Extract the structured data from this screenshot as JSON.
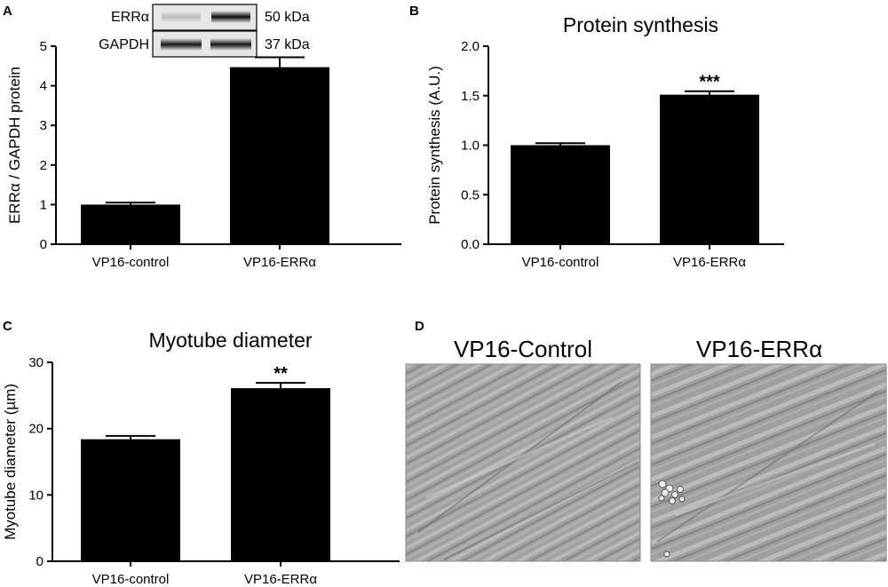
{
  "panels": {
    "a": {
      "letter": "A"
    },
    "b": {
      "letter": "B"
    },
    "c": {
      "letter": "C"
    },
    "d": {
      "letter": "D",
      "images": [
        {
          "title": "VP16-Control"
        },
        {
          "title": "VP16-ERRα"
        }
      ]
    }
  },
  "blot": {
    "rows": [
      {
        "protein": "ERRα",
        "size": "50 kDa",
        "lane_intensity": [
          0.18,
          0.95
        ]
      },
      {
        "protein": "GAPDH",
        "size": "37 kDa",
        "lane_intensity": [
          0.92,
          0.92
        ]
      }
    ]
  },
  "chart_data": [
    {
      "id": "A",
      "type": "bar",
      "title": "",
      "xlabel": "",
      "ylabel": "ERRα / GAPDH protein",
      "ylim": [
        0,
        5
      ],
      "yticks": [
        0,
        1,
        2,
        3,
        4,
        5
      ],
      "categories": [
        "VP16-control",
        "VP16-ERRα"
      ],
      "values": [
        1.0,
        4.47
      ],
      "errors": [
        0.05,
        0.25
      ],
      "significance": [
        "",
        ""
      ],
      "bar_color": "#000000",
      "grid": false
    },
    {
      "id": "B",
      "type": "bar",
      "title": "Protein synthesis",
      "xlabel": "",
      "ylabel": "Protein synthesis (A.U.)",
      "ylim": [
        0,
        2.0
      ],
      "yticks": [
        0.0,
        0.5,
        1.0,
        1.5,
        2.0
      ],
      "ytick_labels": [
        "0.0",
        "0.5",
        "1.0",
        "1.5",
        "2.0"
      ],
      "categories": [
        "VP16-control",
        "VP16-ERRα"
      ],
      "values": [
        1.0,
        1.51
      ],
      "errors": [
        0.02,
        0.035
      ],
      "significance": [
        "",
        "***"
      ],
      "bar_color": "#000000",
      "grid": false
    },
    {
      "id": "C",
      "type": "bar",
      "title": "Myotube diameter",
      "xlabel": "",
      "ylabel": "Myotube diameter (µm)",
      "ylim": [
        0,
        30
      ],
      "yticks": [
        0,
        10,
        20,
        30
      ],
      "categories": [
        "VP16-control",
        "VP16-ERRα"
      ],
      "values": [
        18.4,
        26.1
      ],
      "errors": [
        0.5,
        0.8
      ],
      "significance": [
        "",
        "**"
      ],
      "bar_color": "#000000",
      "grid": false
    }
  ]
}
